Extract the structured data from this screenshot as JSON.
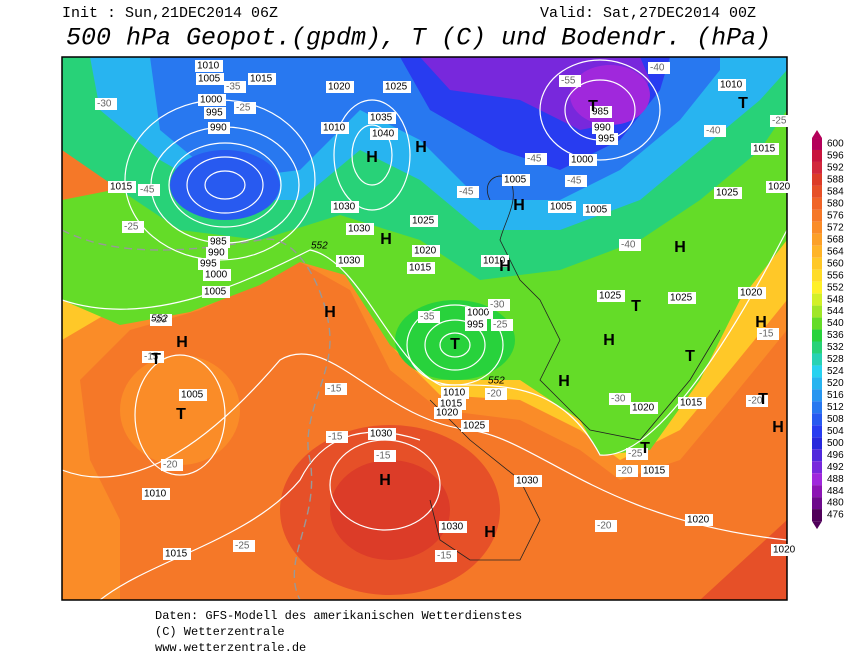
{
  "header": {
    "init": "Init : Sun,21DEC2014 06Z",
    "valid": "Valid: Sat,27DEC2014 00Z",
    "title": "500 hPa Geopot.(gpdm), T (C) und Bodendr. (hPa)"
  },
  "legend": {
    "levels": [
      600,
      596,
      592,
      588,
      584,
      580,
      576,
      572,
      568,
      564,
      560,
      556,
      552,
      548,
      544,
      540,
      536,
      532,
      528,
      524,
      520,
      516,
      512,
      508,
      504,
      500,
      496,
      492,
      488,
      484,
      480,
      476
    ],
    "colors": [
      "#b4005a",
      "#c8143c",
      "#d2283c",
      "#dc3c28",
      "#e65028",
      "#f06428",
      "#f57828",
      "#fa8c28",
      "#fca028",
      "#ffb428",
      "#ffc828",
      "#ffdc28",
      "#fff028",
      "#d2f028",
      "#a0e628",
      "#64dc28",
      "#28d23c",
      "#28d278",
      "#28d2b4",
      "#28d2f0",
      "#28b4f0",
      "#2896f0",
      "#2878f0",
      "#285af0",
      "#283cf0",
      "#2828dc",
      "#5028dc",
      "#7828dc",
      "#a028dc",
      "#8c14b4",
      "#6e0a8c",
      "#50005a"
    ]
  },
  "map": {
    "centers": [
      "H",
      "H",
      "H",
      "T",
      "T",
      "H",
      "H",
      "H",
      "H",
      "H",
      "T",
      "T",
      "H",
      "H",
      "T",
      "H",
      "H",
      "T",
      "T",
      "H",
      "T",
      "H",
      "T"
    ],
    "isobars": [
      "1010",
      "1005",
      "1015",
      "1000",
      "995",
      "990",
      "1020",
      "1025",
      "1010",
      "1035",
      "1040",
      "1015",
      "1030",
      "1030",
      "1025",
      "1020",
      "1015",
      "1010",
      "1005",
      "1005",
      "1005",
      "1000",
      "985",
      "990",
      "995",
      "1010",
      "1015",
      "1025",
      "1020",
      "1025",
      "1025",
      "1020",
      "985",
      "990",
      "995",
      "1000",
      "1005",
      "1030",
      "1000",
      "995",
      "1010",
      "1015",
      "1020",
      "1025",
      "1030",
      "1030",
      "1030",
      "1020",
      "1015",
      "1015",
      "1020",
      "1020",
      "1005",
      "1010",
      "1015"
    ],
    "temps": [
      "-30",
      "-35",
      "-25",
      "-45",
      "-25",
      "-20",
      "-15",
      "-20",
      "-25",
      "-15",
      "-15",
      "-15",
      "-15",
      "-40",
      "-55",
      "-45",
      "-45",
      "-45",
      "-40",
      "-25",
      "-40",
      "-35",
      "-30",
      "-25",
      "-20",
      "-30",
      "-25",
      "-20",
      "-20",
      "-20",
      "-15"
    ],
    "contour_552": [
      "552",
      "552",
      "552"
    ]
  },
  "footer": {
    "source": "Daten: GFS-Modell des amerikanischen Wetterdienstes",
    "copyright": "(C) Wetterzentrale",
    "url": "www.wetterzentrale.de"
  }
}
